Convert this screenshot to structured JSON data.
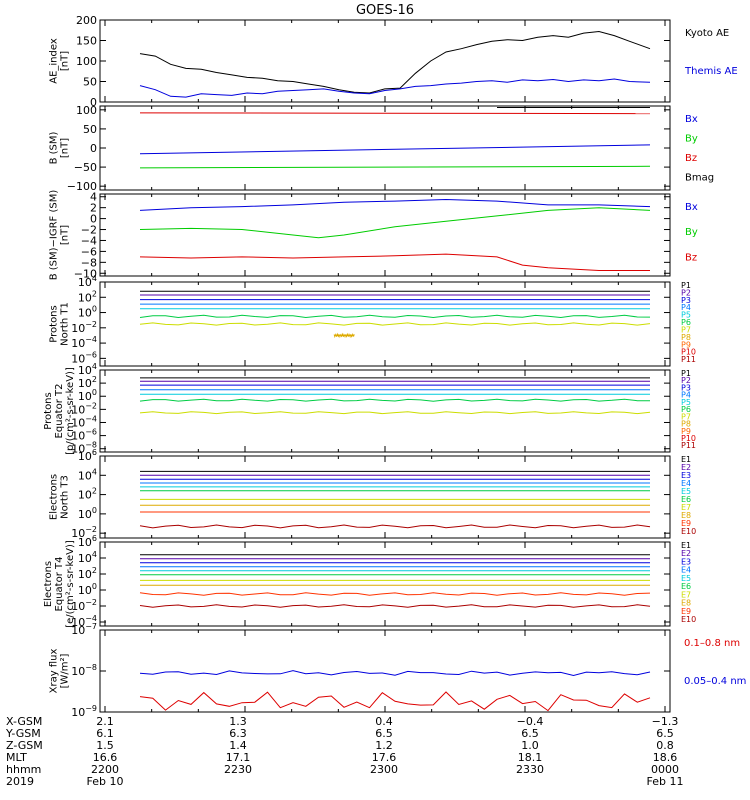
{
  "title": "GOES-16",
  "chart_data": [
    {
      "panel": "ae",
      "type": "line",
      "ylabel": [
        "AE_index",
        "[nT]"
      ],
      "ylim": [
        0,
        200
      ],
      "yticks": [
        0,
        50,
        100,
        150,
        200
      ],
      "ytick_labels": [
        "0",
        "50",
        "100",
        "150",
        "200"
      ],
      "series": [
        {
          "name": "Kyoto AE",
          "color": "#000000",
          "x": [
            0,
            0.03,
            0.06,
            0.09,
            0.12,
            0.15,
            0.18,
            0.21,
            0.24,
            0.27,
            0.3,
            0.33,
            0.36,
            0.39,
            0.42,
            0.45,
            0.48,
            0.51,
            0.54,
            0.57,
            0.6,
            0.63,
            0.66,
            0.69,
            0.72,
            0.75,
            0.78,
            0.81,
            0.84,
            0.87,
            0.9,
            0.93,
            0.96,
            1
          ],
          "y": [
            118,
            112,
            92,
            82,
            80,
            72,
            66,
            60,
            58,
            52,
            50,
            44,
            38,
            30,
            24,
            22,
            32,
            34,
            70,
            100,
            122,
            130,
            140,
            148,
            152,
            150,
            158,
            162,
            158,
            168,
            172,
            162,
            148,
            130
          ]
        },
        {
          "name": "Themis AE",
          "color": "#0000dd",
          "x": [
            0,
            0.03,
            0.06,
            0.09,
            0.12,
            0.15,
            0.18,
            0.21,
            0.24,
            0.27,
            0.3,
            0.33,
            0.36,
            0.39,
            0.42,
            0.45,
            0.48,
            0.51,
            0.54,
            0.57,
            0.6,
            0.63,
            0.66,
            0.69,
            0.72,
            0.75,
            0.78,
            0.81,
            0.84,
            0.87,
            0.9,
            0.93,
            0.96,
            1
          ],
          "y": [
            40,
            30,
            14,
            12,
            20,
            18,
            16,
            22,
            20,
            26,
            28,
            30,
            32,
            26,
            22,
            20,
            28,
            32,
            38,
            40,
            44,
            46,
            50,
            52,
            48,
            54,
            52,
            55,
            50,
            54,
            52,
            56,
            50,
            48
          ]
        }
      ]
    },
    {
      "panel": "bsm",
      "type": "line",
      "ylabel": [
        "B (SM)",
        "[nT]"
      ],
      "ylim": [
        -110,
        110
      ],
      "yticks": [
        -100,
        -50,
        0,
        50,
        100
      ],
      "ytick_labels": [
        "−100",
        "−50",
        "0",
        "50",
        "100"
      ],
      "series": [
        {
          "name": "Bx",
          "color": "#0000dd",
          "x": [
            0,
            1
          ],
          "y": [
            -15,
            8
          ]
        },
        {
          "name": "By",
          "color": "#00cc00",
          "x": [
            0,
            1
          ],
          "y": [
            -52,
            -48
          ]
        },
        {
          "name": "Bz",
          "color": "#dd0000",
          "x": [
            0,
            1
          ],
          "y": [
            92,
            90
          ]
        },
        {
          "name": "Bmag",
          "color": "#000000",
          "x": [
            0.7,
            1
          ],
          "y": [
            106,
            106
          ]
        }
      ]
    },
    {
      "panel": "bigrf",
      "type": "line",
      "ylabel": [
        "B (SM)−IGRF (SM)",
        "[nT]"
      ],
      "ylim": [
        -10.5,
        4.5
      ],
      "yticks": [
        -10,
        -8,
        -6,
        -4,
        -2,
        0,
        2,
        4
      ],
      "ytick_labels": [
        "−10",
        "−8",
        "−6",
        "−4",
        "−2",
        "0",
        "2",
        "4"
      ],
      "series": [
        {
          "name": "Bx",
          "color": "#0000dd",
          "x": [
            0,
            0.1,
            0.2,
            0.3,
            0.4,
            0.5,
            0.6,
            0.7,
            0.8,
            0.9,
            1
          ],
          "y": [
            1.5,
            2.0,
            2.2,
            2.5,
            3.0,
            3.2,
            3.5,
            3.2,
            2.5,
            2.5,
            2.2
          ]
        },
        {
          "name": "By",
          "color": "#00cc00",
          "x": [
            0,
            0.1,
            0.2,
            0.3,
            0.35,
            0.4,
            0.5,
            0.6,
            0.7,
            0.8,
            0.9,
            1
          ],
          "y": [
            -2.0,
            -1.8,
            -2.0,
            -3.0,
            -3.5,
            -3.0,
            -1.5,
            -0.5,
            0.5,
            1.5,
            2.0,
            1.5
          ]
        },
        {
          "name": "Bz",
          "color": "#dd0000",
          "x": [
            0,
            0.1,
            0.2,
            0.3,
            0.4,
            0.5,
            0.6,
            0.7,
            0.75,
            0.8,
            0.9,
            1
          ],
          "y": [
            -7.0,
            -7.2,
            -7.0,
            -7.2,
            -7.0,
            -6.8,
            -6.5,
            -7.0,
            -8.5,
            -9.0,
            -9.5,
            -9.5
          ]
        }
      ]
    },
    {
      "panel": "protons_north",
      "type": "line",
      "log_y": true,
      "ylabel": [
        "Protons",
        "North T1"
      ],
      "ylim_exp": [
        -7,
        4
      ],
      "yticks_exp": [
        -6,
        -4,
        -2,
        0,
        2,
        4
      ],
      "ytick_labels": [
        "10^−6",
        "10^−4",
        "10^−2",
        "10^0",
        "10^2",
        "10^4"
      ],
      "series": [
        {
          "name": "P1",
          "color": "#000000",
          "level": 2.8
        },
        {
          "name": "P2",
          "color": "#5500aa",
          "level": 2.3
        },
        {
          "name": "P3",
          "color": "#0000dd",
          "level": 1.7
        },
        {
          "name": "P4",
          "color": "#0077ff",
          "level": 1.1
        },
        {
          "name": "P5",
          "color": "#00ccdd",
          "level": 0.5
        },
        {
          "name": "P6",
          "color": "#00cc44",
          "level": -0.5
        },
        {
          "name": "P7",
          "color": "#ccdd00",
          "level": -1.5
        },
        {
          "name": "P8",
          "color": "#ddaa00",
          "level": -3.0,
          "x0": 0.38,
          "x1": 0.42
        },
        {
          "name": "P9",
          "color": "#ff6600"
        },
        {
          "name": "P10",
          "color": "#dd0000"
        },
        {
          "name": "P11",
          "color": "#aa0000"
        }
      ]
    },
    {
      "panel": "protons_equator",
      "type": "line",
      "log_y": true,
      "ylabel": [
        "Protons",
        "Equator T2",
        "[p/(cm²-s-sr-keV)]"
      ],
      "ylim_exp": [
        -8.5,
        4
      ],
      "yticks_exp": [
        -8,
        -6,
        -4,
        -2,
        0,
        2,
        4
      ],
      "ytick_labels": [
        "10^−8",
        "10^−6",
        "10^−4",
        "10^−2",
        "10^0",
        "10^2",
        "10^4"
      ],
      "series": [
        {
          "name": "P1",
          "color": "#000000",
          "level": 2.8
        },
        {
          "name": "P2",
          "color": "#5500aa",
          "level": 2.3
        },
        {
          "name": "P3",
          "color": "#0000dd",
          "level": 1.7
        },
        {
          "name": "P4",
          "color": "#0077ff",
          "level": 1.0
        },
        {
          "name": "P5",
          "color": "#00ccdd",
          "level": 0.3
        },
        {
          "name": "P6",
          "color": "#00cc44",
          "level": -0.6
        },
        {
          "name": "P7",
          "color": "#ccdd00",
          "level": -2.5
        },
        {
          "name": "P8",
          "color": "#ddaa00"
        },
        {
          "name": "P9",
          "color": "#ff6600"
        },
        {
          "name": "P10",
          "color": "#dd0000"
        },
        {
          "name": "P11",
          "color": "#aa0000"
        }
      ]
    },
    {
      "panel": "electrons_north",
      "type": "line",
      "log_y": true,
      "ylabel": [
        "Electrons",
        "North T3"
      ],
      "ylim_exp": [
        -2.5,
        6
      ],
      "yticks_exp": [
        -2,
        0,
        2,
        4,
        6
      ],
      "ytick_labels": [
        "10^−2",
        "10^0",
        "10^2",
        "10^4",
        "10^6"
      ],
      "series": [
        {
          "name": "E1",
          "color": "#000000",
          "level": 4.4
        },
        {
          "name": "E2",
          "color": "#5500aa",
          "level": 4.0
        },
        {
          "name": "E3",
          "color": "#0000dd",
          "level": 3.6
        },
        {
          "name": "E4",
          "color": "#0077ff",
          "level": 3.2
        },
        {
          "name": "E5",
          "color": "#00ccdd",
          "level": 2.8
        },
        {
          "name": "E6",
          "color": "#00cc44",
          "level": 2.4
        },
        {
          "name": "E7",
          "color": "#ccdd00",
          "level": 1.5
        },
        {
          "name": "E8",
          "color": "#ddaa00",
          "level": 0.9
        },
        {
          "name": "E9",
          "color": "#ff3300",
          "level": 0.2
        },
        {
          "name": "E10",
          "color": "#aa0000",
          "level": -1.3
        }
      ]
    },
    {
      "panel": "electrons_equator",
      "type": "line",
      "log_y": true,
      "ylabel": [
        "Electrons",
        "Equator T4",
        "[e/(cm²-s-sr-keV)]"
      ],
      "ylim_exp": [
        -4.5,
        6
      ],
      "yticks_exp": [
        -4,
        -2,
        0,
        2,
        4,
        6
      ],
      "ytick_labels": [
        "10^−4",
        "10^−2",
        "10^0",
        "10^2",
        "10^4",
        "10^6"
      ],
      "series": [
        {
          "name": "E1",
          "color": "#000000",
          "level": 4.4
        },
        {
          "name": "E2",
          "color": "#5500aa",
          "level": 3.9
        },
        {
          "name": "E3",
          "color": "#0000dd",
          "level": 3.4
        },
        {
          "name": "E4",
          "color": "#0077ff",
          "level": 2.9
        },
        {
          "name": "E5",
          "color": "#00ccdd",
          "level": 2.4
        },
        {
          "name": "E6",
          "color": "#00cc44",
          "level": 1.9
        },
        {
          "name": "E7",
          "color": "#ccdd00",
          "level": 1.2
        },
        {
          "name": "E8",
          "color": "#ddaa00",
          "level": 0.6
        },
        {
          "name": "E9",
          "color": "#ff3300",
          "level": -0.5
        },
        {
          "name": "E10",
          "color": "#aa0000",
          "level": -2.0
        }
      ]
    },
    {
      "panel": "xray",
      "type": "line",
      "log_y": true,
      "ylabel": [
        "Xray flux",
        "[W/m²]"
      ],
      "ylim_exp": [
        -9,
        -7
      ],
      "yticks_exp": [
        -9,
        -8,
        -7
      ],
      "ytick_labels": [
        "10^−9",
        "10^−8",
        "10^−7"
      ],
      "series": [
        {
          "name": "0.1–0.8 nm",
          "color": "#dd0000",
          "level": -8.75
        },
        {
          "name": "0.05–0.4 nm",
          "color": "#0000dd",
          "level": -8.05
        }
      ]
    }
  ],
  "time_axis": {
    "rows": [
      {
        "label": "X-GSM",
        "values": [
          "2.1",
          "1.3",
          "0.4",
          "−0.4",
          "−1.3"
        ]
      },
      {
        "label": "Y-GSM",
        "values": [
          "6.1",
          "6.3",
          "6.5",
          "6.5",
          "6.5"
        ]
      },
      {
        "label": "Z-GSM",
        "values": [
          "1.5",
          "1.4",
          "1.2",
          "1.0",
          "0.8"
        ]
      },
      {
        "label": "MLT",
        "values": [
          "16.6",
          "17.1",
          "17.6",
          "18.1",
          "18.6"
        ]
      },
      {
        "label": "hhmm",
        "values": [
          "2200",
          "2230",
          "2300",
          "2330",
          "0000"
        ]
      },
      {
        "label": "2019",
        "values": [
          "Feb 10",
          "",
          "",
          "",
          "Feb 11"
        ]
      }
    ]
  }
}
